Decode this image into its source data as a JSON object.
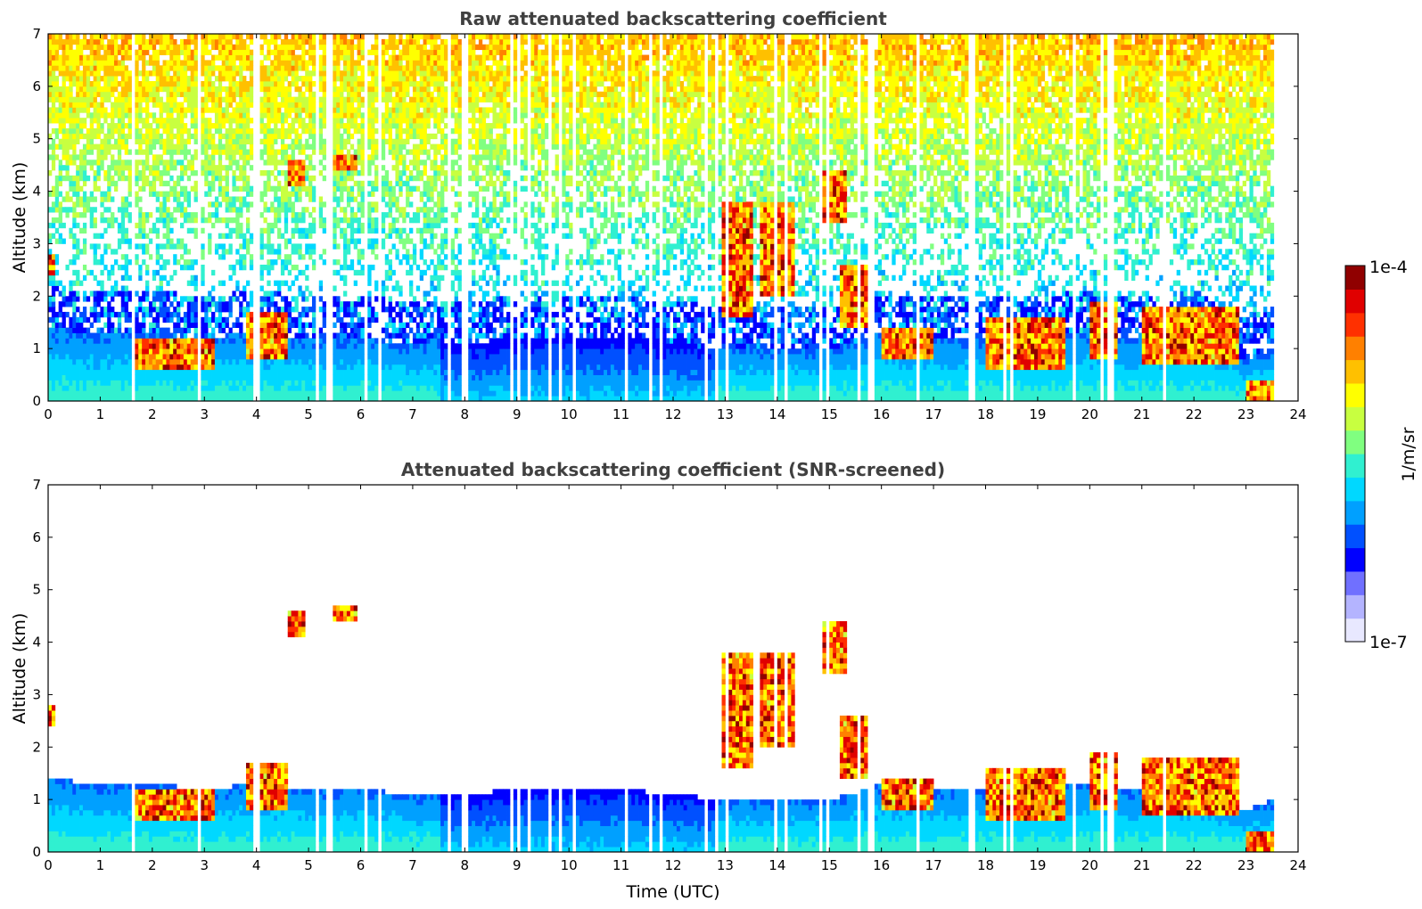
{
  "chart_data": [
    {
      "type": "heatmap",
      "title": "Raw attenuated backscattering coefficient",
      "xlabel": "",
      "ylabel": "Altitude (km)",
      "xlim": [
        0,
        24
      ],
      "ylim": [
        0,
        7
      ],
      "xticks": [
        "0",
        "1",
        "2",
        "3",
        "4",
        "5",
        "6",
        "7",
        "8",
        "9",
        "10",
        "11",
        "12",
        "13",
        "14",
        "15",
        "16",
        "17",
        "18",
        "19",
        "20",
        "21",
        "22",
        "23",
        "24"
      ],
      "yticks": [
        "0",
        "1",
        "2",
        "3",
        "4",
        "5",
        "6",
        "7"
      ],
      "data_end_hour": 23.55,
      "screened": false,
      "features": [
        {
          "name": "boundary layer top",
          "type": "layer_top_km",
          "x": [
            0,
            1,
            2,
            3,
            4,
            5,
            6,
            7,
            8,
            9,
            10,
            11,
            12,
            13,
            14,
            15,
            16,
            17,
            18,
            19,
            20,
            21,
            22,
            23,
            23.5
          ],
          "y": [
            1.4,
            1.3,
            1.3,
            1.2,
            1.3,
            1.2,
            1.2,
            1.1,
            1.1,
            1.2,
            1.2,
            1.2,
            1.1,
            1.0,
            1.0,
            1.0,
            1.3,
            1.2,
            1.2,
            1.2,
            1.3,
            1.2,
            1.3,
            0.8,
            1.0
          ]
        },
        {
          "name": "cloud 1",
          "x": [
            0.0,
            0.1
          ],
          "alt_km": [
            2.4,
            2.8
          ]
        },
        {
          "name": "cloud 2",
          "x": [
            1.6,
            3.2
          ],
          "alt_km": [
            0.6,
            1.2
          ]
        },
        {
          "name": "cloud 3",
          "x": [
            3.8,
            4.6
          ],
          "alt_km": [
            0.8,
            1.7
          ]
        },
        {
          "name": "cloud 4",
          "x": [
            4.6,
            4.9
          ],
          "alt_km": [
            4.1,
            4.6
          ]
        },
        {
          "name": "cloud 5",
          "x": [
            5.4,
            5.9
          ],
          "alt_km": [
            4.4,
            4.7
          ]
        },
        {
          "name": "cloud 6",
          "x": [
            12.9,
            13.5
          ],
          "alt_km": [
            1.6,
            3.8
          ]
        },
        {
          "name": "cloud 7",
          "x": [
            13.7,
            14.3
          ],
          "alt_km": [
            2.0,
            3.8
          ]
        },
        {
          "name": "cloud 8",
          "x": [
            14.9,
            15.3
          ],
          "alt_km": [
            3.4,
            4.4
          ]
        },
        {
          "name": "cloud 9",
          "x": [
            15.2,
            15.8
          ],
          "alt_km": [
            1.4,
            2.6
          ]
        },
        {
          "name": "cloud 10",
          "x": [
            16.0,
            17.0
          ],
          "alt_km": [
            0.8,
            1.4
          ]
        },
        {
          "name": "cloud 11",
          "x": [
            18.0,
            19.5
          ],
          "alt_km": [
            0.6,
            1.6
          ]
        },
        {
          "name": "cloud 12",
          "x": [
            20.0,
            20.5
          ],
          "alt_km": [
            0.8,
            1.9
          ]
        },
        {
          "name": "cloud 13",
          "x": [
            21.0,
            22.9
          ],
          "alt_km": [
            0.7,
            1.8
          ]
        },
        {
          "name": "low aerosol",
          "x": [
            23.0,
            23.5
          ],
          "alt_km": [
            0.0,
            0.4
          ]
        }
      ]
    },
    {
      "type": "heatmap",
      "title": "Attenuated backscattering coefficient (SNR-screened)",
      "xlabel": "Time (UTC)",
      "ylabel": "Altitude (km)",
      "xlim": [
        0,
        24
      ],
      "ylim": [
        0,
        7
      ],
      "xticks": [
        "0",
        "1",
        "2",
        "3",
        "4",
        "5",
        "6",
        "7",
        "8",
        "9",
        "10",
        "11",
        "12",
        "13",
        "14",
        "15",
        "16",
        "17",
        "18",
        "19",
        "20",
        "21",
        "22",
        "23",
        "24"
      ],
      "yticks": [
        "0",
        "1",
        "2",
        "3",
        "4",
        "5",
        "6",
        "7"
      ],
      "data_end_hour": 23.55,
      "screened": true
    }
  ],
  "colorbar": {
    "label": "1/m/sr",
    "max_label": "1e-4",
    "min_label": "1e-7",
    "colors": [
      "#e8e8ff",
      "#b4b4ff",
      "#7070ff",
      "#0000ff",
      "#0050ff",
      "#00a0ff",
      "#00d8ff",
      "#30f0d0",
      "#80ff80",
      "#c8ff40",
      "#ffff00",
      "#ffc000",
      "#ff8000",
      "#ff3000",
      "#e00000",
      "#900000"
    ]
  }
}
